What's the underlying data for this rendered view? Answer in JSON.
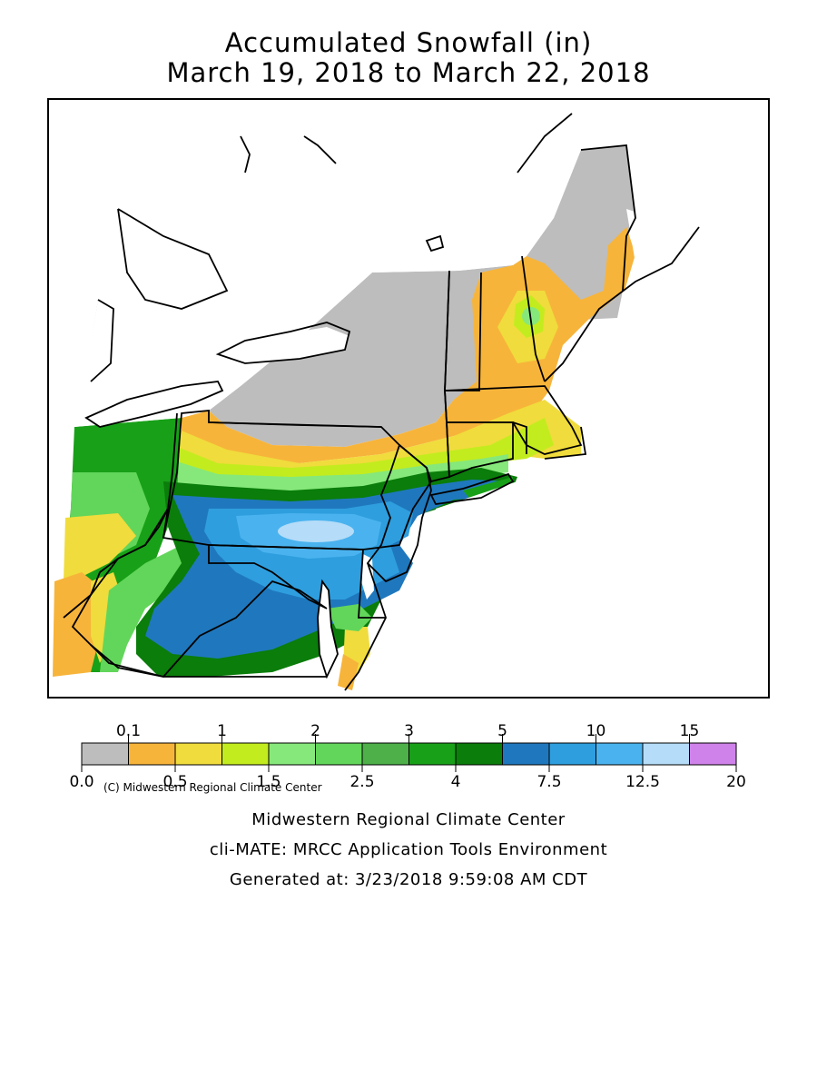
{
  "title": {
    "line1": "Accumulated Snowfall (in)",
    "line2": "March 19, 2018 to March 22, 2018"
  },
  "map": {
    "copyright": "(C) Midwestern Regional Climate Center",
    "colors": {
      "land": "#ffffff",
      "outline": "#000000",
      "zero": "#bdbdbd",
      "c0_1": "#f7b43a",
      "c0_5": "#f0dc3c",
      "c1": "#c3ec1e",
      "c1_5": "#86e87a",
      "c2": "#62d65a",
      "c2_5": "#4db048",
      "c3": "#18a018",
      "c4": "#0a7d0a",
      "c5": "#1f78bd",
      "c7_5": "#2e9ede",
      "c10": "#4ab3ef",
      "c12_5": "#b5dcf8"
    }
  },
  "chart_data": {
    "type": "heatmap",
    "title": "Accumulated Snowfall (in)",
    "subtitle": "March 19, 2018 to March 22, 2018",
    "legend_placement": "bottom",
    "colorbar": {
      "bins": [
        {
          "from": 0.0,
          "to": 0.1,
          "color": "#bdbdbd"
        },
        {
          "from": 0.1,
          "to": 0.5,
          "color": "#f7b43a"
        },
        {
          "from": 0.5,
          "to": 1,
          "color": "#f0dc3c"
        },
        {
          "from": 1,
          "to": 1.5,
          "color": "#c3ec1e"
        },
        {
          "from": 1.5,
          "to": 2,
          "color": "#86e87a"
        },
        {
          "from": 2,
          "to": 2.5,
          "color": "#62d65a"
        },
        {
          "from": 2.5,
          "to": 3,
          "color": "#4db048"
        },
        {
          "from": 3,
          "to": 4,
          "color": "#18a018"
        },
        {
          "from": 4,
          "to": 5,
          "color": "#0a7d0a"
        },
        {
          "from": 5,
          "to": 7.5,
          "color": "#1f78bd"
        },
        {
          "from": 7.5,
          "to": 10,
          "color": "#2e9ede"
        },
        {
          "from": 10,
          "to": 12.5,
          "color": "#4ab3ef"
        },
        {
          "from": 12.5,
          "to": 15,
          "color": "#b5dcf8"
        },
        {
          "from": 15,
          "to": 20,
          "color": "#cf82ea"
        }
      ],
      "top_labels": [
        "0.1",
        "1",
        "2",
        "3",
        "5",
        "10",
        "15"
      ],
      "bottom_labels": [
        "0.0",
        "0.5",
        "1.5",
        "2.5",
        "4",
        "7.5",
        "12.5",
        "20"
      ]
    }
  },
  "footer": {
    "line1": "Midwestern Regional Climate Center",
    "line2": "cli-MATE: MRCC Application Tools Environment",
    "line3": "Generated at: 3/23/2018 9:59:08 AM CDT"
  }
}
